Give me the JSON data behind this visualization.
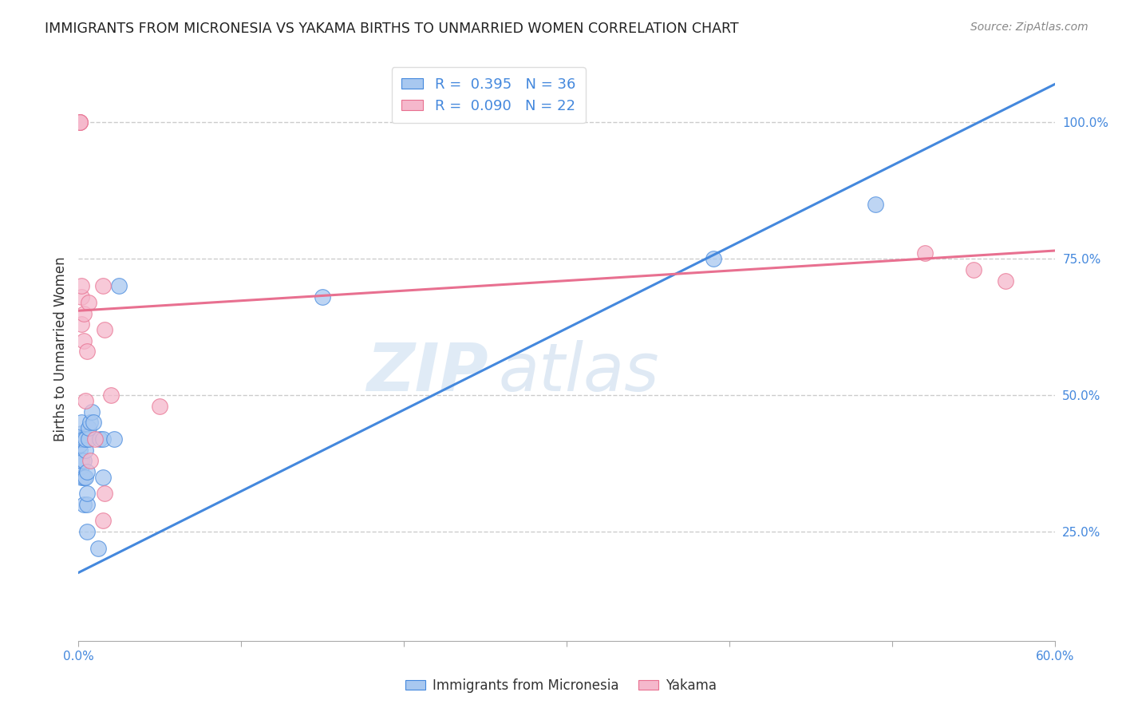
{
  "title": "IMMIGRANTS FROM MICRONESIA VS YAKAMA BIRTHS TO UNMARRIED WOMEN CORRELATION CHART",
  "source": "Source: ZipAtlas.com",
  "xlabel_label": "Immigrants from Micronesia",
  "ylabel_label": "Births to Unmarried Women",
  "legend_label1": "Immigrants from Micronesia",
  "legend_label2": "Yakama",
  "R1": 0.395,
  "N1": 36,
  "R2": 0.09,
  "N2": 22,
  "color_blue": "#A8C8F0",
  "color_pink": "#F5B8CC",
  "line_blue": "#4488DD",
  "line_pink": "#E87090",
  "title_color": "#222222",
  "source_color": "#888888",
  "axis_color": "#4488DD",
  "legend_text_color": "#4488DD",
  "watermark_zip": "ZIP",
  "watermark_atlas": "atlas",
  "xlim": [
    0.0,
    0.6
  ],
  "ylim": [
    0.05,
    1.12
  ],
  "x_ticks": [
    0.0,
    0.1,
    0.2,
    0.3,
    0.4,
    0.5,
    0.6
  ],
  "x_tick_labels_show": [
    "0.0%",
    "",
    "",
    "",
    "",
    "",
    "60.0%"
  ],
  "y_ticks_right": [
    0.25,
    0.5,
    0.75,
    1.0
  ],
  "y_tick_labels_right": [
    "25.0%",
    "50.0%",
    "75.0%",
    "100.0%"
  ],
  "blue_points_x": [
    0.001,
    0.001,
    0.001,
    0.001,
    0.001,
    0.002,
    0.002,
    0.002,
    0.002,
    0.002,
    0.002,
    0.003,
    0.003,
    0.003,
    0.003,
    0.004,
    0.004,
    0.004,
    0.005,
    0.005,
    0.005,
    0.005,
    0.006,
    0.006,
    0.007,
    0.008,
    0.009,
    0.012,
    0.013,
    0.015,
    0.015,
    0.022,
    0.025,
    0.15,
    0.39,
    0.49
  ],
  "blue_points_y": [
    0.38,
    0.38,
    0.4,
    0.41,
    0.42,
    0.35,
    0.37,
    0.38,
    0.42,
    0.43,
    0.45,
    0.3,
    0.35,
    0.38,
    0.42,
    0.35,
    0.4,
    0.42,
    0.25,
    0.3,
    0.32,
    0.36,
    0.42,
    0.44,
    0.45,
    0.47,
    0.45,
    0.22,
    0.42,
    0.35,
    0.42,
    0.42,
    0.7,
    0.68,
    0.75,
    0.85
  ],
  "pink_points_x": [
    0.001,
    0.001,
    0.001,
    0.002,
    0.002,
    0.002,
    0.003,
    0.003,
    0.004,
    0.005,
    0.006,
    0.007,
    0.01,
    0.015,
    0.016,
    0.016,
    0.02,
    0.05,
    0.015,
    0.52,
    0.55,
    0.57
  ],
  "pink_points_y": [
    1.0,
    1.0,
    1.0,
    0.63,
    0.68,
    0.7,
    0.6,
    0.65,
    0.49,
    0.58,
    0.67,
    0.38,
    0.42,
    0.7,
    0.32,
    0.62,
    0.5,
    0.48,
    0.27,
    0.76,
    0.73,
    0.71
  ],
  "blue_line_x": [
    0.0,
    0.6
  ],
  "blue_line_y": [
    0.175,
    1.07
  ],
  "pink_line_x": [
    0.0,
    0.6
  ],
  "pink_line_y": [
    0.655,
    0.765
  ],
  "figsize": [
    14.06,
    8.92
  ],
  "dpi": 100
}
